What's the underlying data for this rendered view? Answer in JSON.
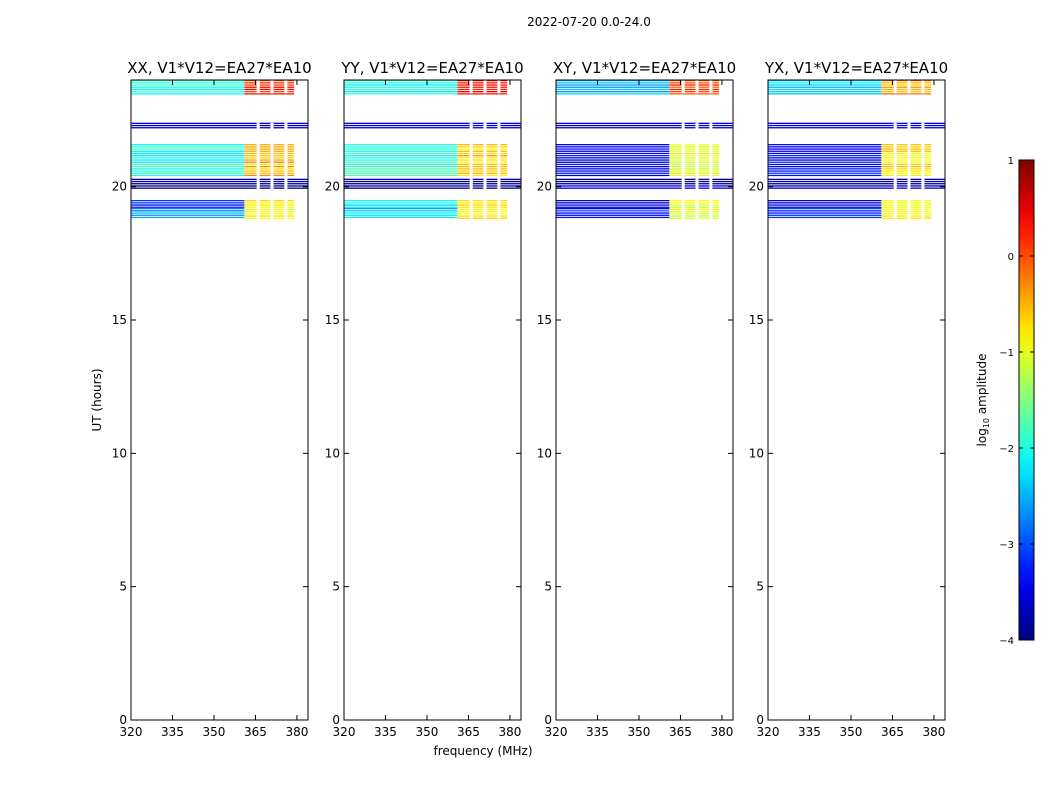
{
  "figure": {
    "suptitle": "2022-07-20 0.0-24.0",
    "xlabel": "frequency (MHz)",
    "ylabel": "UT (hours)"
  },
  "colorbar": {
    "label": "log10 amplitude",
    "label_main": "log",
    "label_sub": "10",
    "label_suffix": " amplitude",
    "range": [
      -4,
      1
    ],
    "ticks": [
      "1",
      "0",
      "−1",
      "−2",
      "−3",
      "−4"
    ],
    "tick_values": [
      1,
      0,
      -1,
      -2,
      -3,
      -4
    ],
    "colormap": "jet"
  },
  "chart_data": [
    {
      "type": "heatmap",
      "title": "XX, V1*V12=EA27*EA10",
      "xlim": [
        320,
        384
      ],
      "ylim": [
        0,
        24
      ],
      "xticks": [
        "320",
        "335",
        "350",
        "365",
        "380"
      ],
      "yticks": [
        "0",
        "5",
        "10",
        "15",
        "20"
      ],
      "data_blocks": [
        {
          "y": [
            23.5,
            24.0
          ],
          "x": [
            320,
            361
          ],
          "log10_amplitude": -2.0
        },
        {
          "y": [
            23.5,
            24.0
          ],
          "x": [
            361,
            379
          ],
          "log10_amplitude": 0.2
        },
        {
          "y": [
            22.2,
            22.4
          ],
          "x": [
            320,
            384
          ],
          "log10_amplitude": -3.5
        },
        {
          "y": [
            20.4,
            21.6
          ],
          "x": [
            320,
            361
          ],
          "log10_amplitude": -2.0
        },
        {
          "y": [
            20.4,
            21.6
          ],
          "x": [
            361,
            379
          ],
          "log10_amplitude": -0.5
        },
        {
          "y": [
            19.9,
            20.3
          ],
          "x": [
            320,
            384
          ],
          "log10_amplitude": -3.8
        },
        {
          "y": [
            19.2,
            19.5
          ],
          "x": [
            320,
            361
          ],
          "log10_amplitude": -3.2
        },
        {
          "y": [
            18.8,
            19.2
          ],
          "x": [
            320,
            361
          ],
          "log10_amplitude": -2.6
        },
        {
          "y": [
            18.8,
            19.5
          ],
          "x": [
            361,
            379
          ],
          "log10_amplitude": -0.9
        }
      ]
    },
    {
      "type": "heatmap",
      "title": "YY, V1*V12=EA27*EA10",
      "xlim": [
        320,
        384
      ],
      "ylim": [
        0,
        24
      ],
      "xticks": [
        "320",
        "335",
        "350",
        "365",
        "380"
      ],
      "yticks": [
        "0",
        "5",
        "10",
        "15",
        "20"
      ],
      "data_blocks": [
        {
          "y": [
            23.5,
            24.0
          ],
          "x": [
            320,
            361
          ],
          "log10_amplitude": -2.0
        },
        {
          "y": [
            23.5,
            24.0
          ],
          "x": [
            361,
            379
          ],
          "log10_amplitude": 0.3
        },
        {
          "y": [
            22.2,
            22.4
          ],
          "x": [
            320,
            384
          ],
          "log10_amplitude": -3.5
        },
        {
          "y": [
            20.4,
            21.6
          ],
          "x": [
            320,
            361
          ],
          "log10_amplitude": -1.9
        },
        {
          "y": [
            20.4,
            21.6
          ],
          "x": [
            361,
            379
          ],
          "log10_amplitude": -0.6
        },
        {
          "y": [
            19.9,
            20.3
          ],
          "x": [
            320,
            384
          ],
          "log10_amplitude": -3.8
        },
        {
          "y": [
            19.2,
            19.5
          ],
          "x": [
            320,
            361
          ],
          "log10_amplitude": -2.2
        },
        {
          "y": [
            18.8,
            19.2
          ],
          "x": [
            320,
            361
          ],
          "log10_amplitude": -2.4
        },
        {
          "y": [
            18.8,
            19.5
          ],
          "x": [
            361,
            379
          ],
          "log10_amplitude": -0.7
        }
      ]
    },
    {
      "type": "heatmap",
      "title": "XY, V1*V12=EA27*EA10",
      "xlim": [
        320,
        384
      ],
      "ylim": [
        0,
        24
      ],
      "xticks": [
        "320",
        "335",
        "350",
        "365",
        "380"
      ],
      "yticks": [
        "0",
        "5",
        "10",
        "15",
        "20"
      ],
      "data_blocks": [
        {
          "y": [
            23.5,
            24.0
          ],
          "x": [
            320,
            361
          ],
          "log10_amplitude": -2.5
        },
        {
          "y": [
            23.5,
            24.0
          ],
          "x": [
            361,
            379
          ],
          "log10_amplitude": 0.1
        },
        {
          "y": [
            22.2,
            22.4
          ],
          "x": [
            320,
            384
          ],
          "log10_amplitude": -3.5
        },
        {
          "y": [
            20.4,
            21.6
          ],
          "x": [
            320,
            361
          ],
          "log10_amplitude": -3.4
        },
        {
          "y": [
            20.4,
            21.6
          ],
          "x": [
            361,
            379
          ],
          "log10_amplitude": -1.0
        },
        {
          "y": [
            19.9,
            20.3
          ],
          "x": [
            320,
            384
          ],
          "log10_amplitude": -3.8
        },
        {
          "y": [
            19.2,
            19.5
          ],
          "x": [
            320,
            361
          ],
          "log10_amplitude": -3.6
        },
        {
          "y": [
            18.8,
            19.2
          ],
          "x": [
            320,
            361
          ],
          "log10_amplitude": -3.2
        },
        {
          "y": [
            18.8,
            19.5
          ],
          "x": [
            361,
            379
          ],
          "log10_amplitude": -1.1
        }
      ]
    },
    {
      "type": "heatmap",
      "title": "YX, V1*V12=EA27*EA10",
      "xlim": [
        320,
        384
      ],
      "ylim": [
        0,
        24
      ],
      "xticks": [
        "320",
        "335",
        "350",
        "365",
        "380"
      ],
      "yticks": [
        "0",
        "5",
        "10",
        "15",
        "20"
      ],
      "data_blocks": [
        {
          "y": [
            23.5,
            24.0
          ],
          "x": [
            320,
            361
          ],
          "log10_amplitude": -2.3
        },
        {
          "y": [
            23.5,
            24.0
          ],
          "x": [
            361,
            379
          ],
          "log10_amplitude": -0.4
        },
        {
          "y": [
            22.2,
            22.4
          ],
          "x": [
            320,
            384
          ],
          "log10_amplitude": -3.5
        },
        {
          "y": [
            20.4,
            21.6
          ],
          "x": [
            320,
            361
          ],
          "log10_amplitude": -3.3
        },
        {
          "y": [
            20.4,
            21.6
          ],
          "x": [
            361,
            379
          ],
          "log10_amplitude": -0.8
        },
        {
          "y": [
            19.9,
            20.3
          ],
          "x": [
            320,
            384
          ],
          "log10_amplitude": -3.8
        },
        {
          "y": [
            19.2,
            19.5
          ],
          "x": [
            320,
            361
          ],
          "log10_amplitude": -3.6
        },
        {
          "y": [
            18.8,
            19.2
          ],
          "x": [
            320,
            361
          ],
          "log10_amplitude": -3.2
        },
        {
          "y": [
            18.8,
            19.5
          ],
          "x": [
            361,
            379
          ],
          "log10_amplitude": -0.9
        }
      ]
    }
  ]
}
